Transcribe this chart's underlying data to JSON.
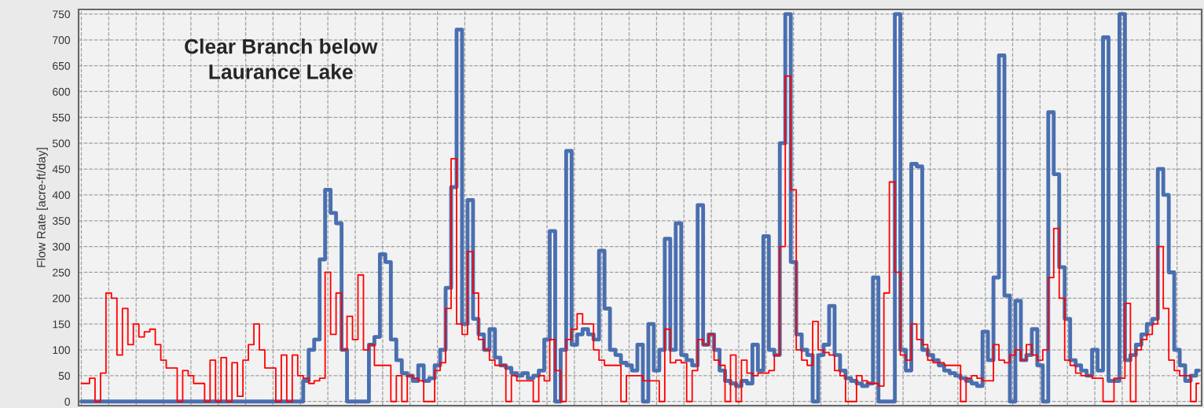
{
  "chart_data": {
    "type": "step",
    "annotations": [
      "Clear Branch below Laurance Lake"
    ],
    "ylabel": "Flow Rate [acre-ft/day]",
    "ylim": [
      -8,
      759
    ],
    "yticks": [
      0,
      50,
      100,
      150,
      200,
      250,
      300,
      350,
      400,
      450,
      500,
      550,
      600,
      650,
      700,
      750
    ],
    "grid": true,
    "tick_labels": "y",
    "categories": [
      null,
      null,
      null,
      null,
      null,
      null,
      null,
      null,
      null,
      null,
      null,
      null,
      null,
      null,
      null,
      null,
      null,
      null,
      null,
      null,
      null,
      null,
      null,
      null,
      null,
      null,
      null,
      null,
      null,
      null,
      null,
      null,
      null,
      null,
      null,
      null,
      null,
      null,
      null,
      null,
      null,
      null,
      null,
      null,
      null,
      null,
      null,
      null,
      null,
      null,
      null,
      null,
      null,
      null,
      null,
      null,
      null,
      null,
      null,
      null,
      null,
      null,
      null,
      null,
      null,
      null,
      null,
      null,
      null,
      null,
      null,
      null,
      null,
      null,
      null,
      null,
      null,
      null,
      null,
      null,
      null,
      null,
      null,
      null,
      null,
      null,
      null,
      null,
      null,
      null,
      null,
      null,
      null,
      null,
      null,
      null,
      null,
      null,
      null,
      null,
      null,
      null,
      null,
      null,
      null,
      null,
      null,
      null,
      null,
      null,
      null,
      null,
      null,
      null,
      null,
      null,
      null,
      null,
      null,
      null,
      null,
      null,
      null,
      null,
      null,
      null,
      null,
      null,
      null,
      null,
      null,
      null,
      null,
      null,
      null,
      null,
      null,
      null,
      null,
      null,
      null,
      null,
      null,
      null,
      null,
      null,
      null,
      null,
      null,
      null,
      null,
      null,
      null,
      null,
      null,
      null,
      null,
      null,
      null,
      null,
      null,
      null,
      null,
      null,
      null,
      null,
      null,
      null,
      null,
      null,
      null,
      null,
      null,
      null,
      null,
      null,
      null,
      null,
      null,
      null,
      null,
      null,
      null,
      null,
      null,
      null,
      null,
      null,
      null,
      null,
      null,
      null,
      null,
      null,
      null,
      null,
      null,
      null,
      null,
      null,
      null,
      null,
      null,
      null,
      null
    ],
    "series": [
      {
        "color": "#4a6fb0",
        "values": [
          0,
          0,
          0,
          0,
          0,
          0,
          0,
          0,
          0,
          0,
          0,
          0,
          0,
          0,
          0,
          0,
          0,
          0,
          0,
          0,
          0,
          0,
          0,
          0,
          0,
          0,
          0,
          0,
          0,
          0,
          0,
          0,
          0,
          0,
          0,
          0,
          0,
          0,
          0,
          0,
          0,
          40,
          100,
          120,
          275,
          410,
          365,
          345,
          100,
          0,
          0,
          0,
          0,
          110,
          125,
          285,
          270,
          120,
          80,
          55,
          50,
          40,
          70,
          40,
          45,
          70,
          100,
          220,
          415,
          720,
          150,
          390,
          160,
          130,
          100,
          140,
          85,
          70,
          65,
          55,
          50,
          55,
          45,
          50,
          60,
          120,
          330,
          0,
          100,
          485,
          110,
          130,
          140,
          130,
          120,
          292,
          180,
          100,
          90,
          75,
          70,
          60,
          110,
          0,
          150,
          60,
          100,
          315,
          100,
          345,
          90,
          80,
          70,
          380,
          110,
          130,
          100,
          60,
          40,
          35,
          30,
          40,
          35,
          110,
          60,
          320,
          100,
          90,
          500,
          750,
          270,
          130,
          100,
          90,
          0,
          90,
          110,
          185,
          90,
          60,
          45,
          40,
          35,
          30,
          35,
          240,
          0,
          0,
          0,
          750,
          100,
          60,
          460,
          455,
          100,
          90,
          80,
          70,
          60,
          55,
          50,
          45,
          40,
          35,
          30,
          135,
          80,
          240,
          670,
          205,
          0,
          195,
          80,
          90,
          140,
          70,
          0,
          560,
          440,
          260,
          160,
          80,
          70,
          60,
          50,
          100,
          60,
          705,
          40,
          40,
          750,
          80,
          90,
          110,
          130,
          150,
          160,
          450,
          400,
          250,
          100,
          70,
          40,
          50,
          60
        ]
      },
      {
        "color": "#ff0000",
        "values": [
          35,
          35,
          45,
          0,
          55,
          210,
          200,
          90,
          180,
          110,
          150,
          125,
          135,
          140,
          110,
          80,
          65,
          65,
          0,
          60,
          50,
          35,
          35,
          0,
          80,
          0,
          85,
          0,
          75,
          10,
          80,
          110,
          150,
          100,
          65,
          65,
          0,
          90,
          0,
          90,
          50,
          45,
          35,
          40,
          45,
          250,
          130,
          210,
          100,
          165,
          120,
          245,
          100,
          110,
          70,
          70,
          70,
          0,
          50,
          0,
          50,
          45,
          40,
          0,
          0,
          60,
          75,
          180,
          470,
          150,
          130,
          290,
          210,
          120,
          100,
          80,
          70,
          70,
          0,
          50,
          40,
          40,
          40,
          0,
          50,
          40,
          120,
          60,
          0,
          120,
          140,
          170,
          150,
          150,
          100,
          80,
          70,
          70,
          70,
          0,
          50,
          50,
          50,
          40,
          40,
          40,
          0,
          140,
          75,
          80,
          75,
          0,
          60,
          120,
          110,
          130,
          80,
          70,
          0,
          90,
          0,
          80,
          55,
          50,
          55,
          55,
          60,
          90,
          300,
          630,
          410,
          100,
          80,
          70,
          155,
          100,
          95,
          90,
          60,
          50,
          0,
          0,
          50,
          40,
          35,
          35,
          30,
          210,
          425,
          250,
          90,
          80,
          150,
          120,
          110,
          80,
          75,
          75,
          70,
          70,
          70,
          0,
          45,
          50,
          45,
          40,
          40,
          110,
          80,
          75,
          90,
          100,
          80,
          110,
          90,
          80,
          100,
          240,
          335,
          200,
          80,
          70,
          55,
          50,
          50,
          45,
          45,
          0,
          0,
          45,
          45,
          190,
          0,
          100,
          120,
          130,
          150,
          300,
          180,
          80,
          60,
          50,
          50,
          0,
          35
        ]
      }
    ]
  }
}
